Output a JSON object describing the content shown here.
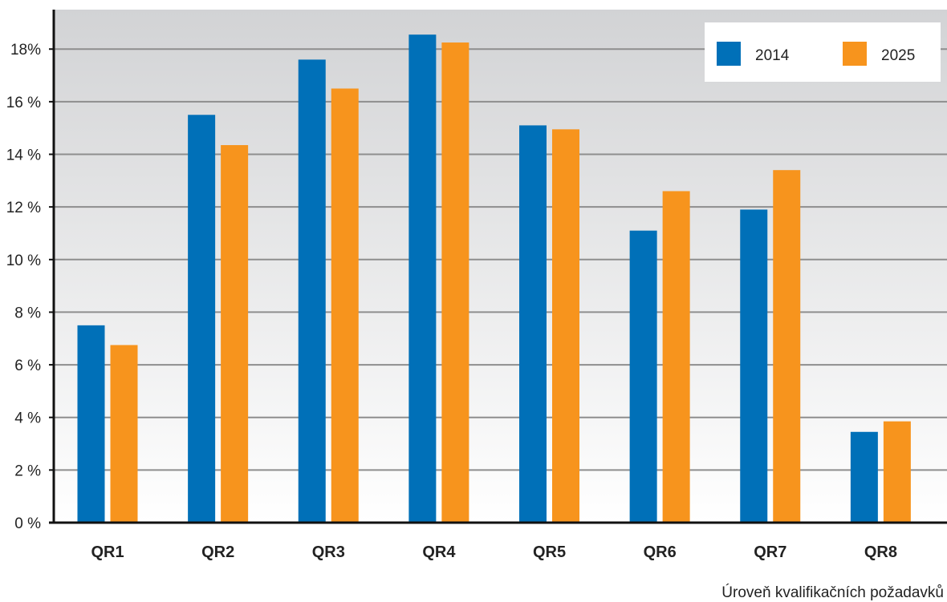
{
  "chart_data": {
    "type": "bar",
    "categories": [
      "QR1",
      "QR2",
      "QR3",
      "QR4",
      "QR5",
      "QR6",
      "QR7",
      "QR8"
    ],
    "series": [
      {
        "name": "2014",
        "color": "#0070b8",
        "values": [
          7.5,
          15.5,
          17.6,
          18.55,
          15.1,
          11.1,
          11.9,
          3.45
        ]
      },
      {
        "name": "2025",
        "color": "#f7941d",
        "values": [
          6.75,
          14.35,
          16.5,
          18.25,
          14.95,
          12.6,
          13.4,
          3.85
        ]
      }
    ],
    "title": "",
    "xlabel": "Úroveň kvalifikačních požadavků",
    "ylabel": "",
    "ylim": [
      0,
      19.5
    ],
    "yticks": [
      0,
      2,
      4,
      6,
      8,
      10,
      12,
      14,
      16,
      18
    ],
    "ytick_labels": [
      "0 %",
      "2 %",
      "4 %",
      "6 %",
      "8 %",
      "10 %",
      "12 %",
      "14 %",
      "16 %",
      "18%"
    ],
    "grid": true,
    "legend": "top-right",
    "background_top": "#d2d3d5",
    "background_bottom": "#ffffff",
    "grid_color": "#8e8e8e"
  }
}
